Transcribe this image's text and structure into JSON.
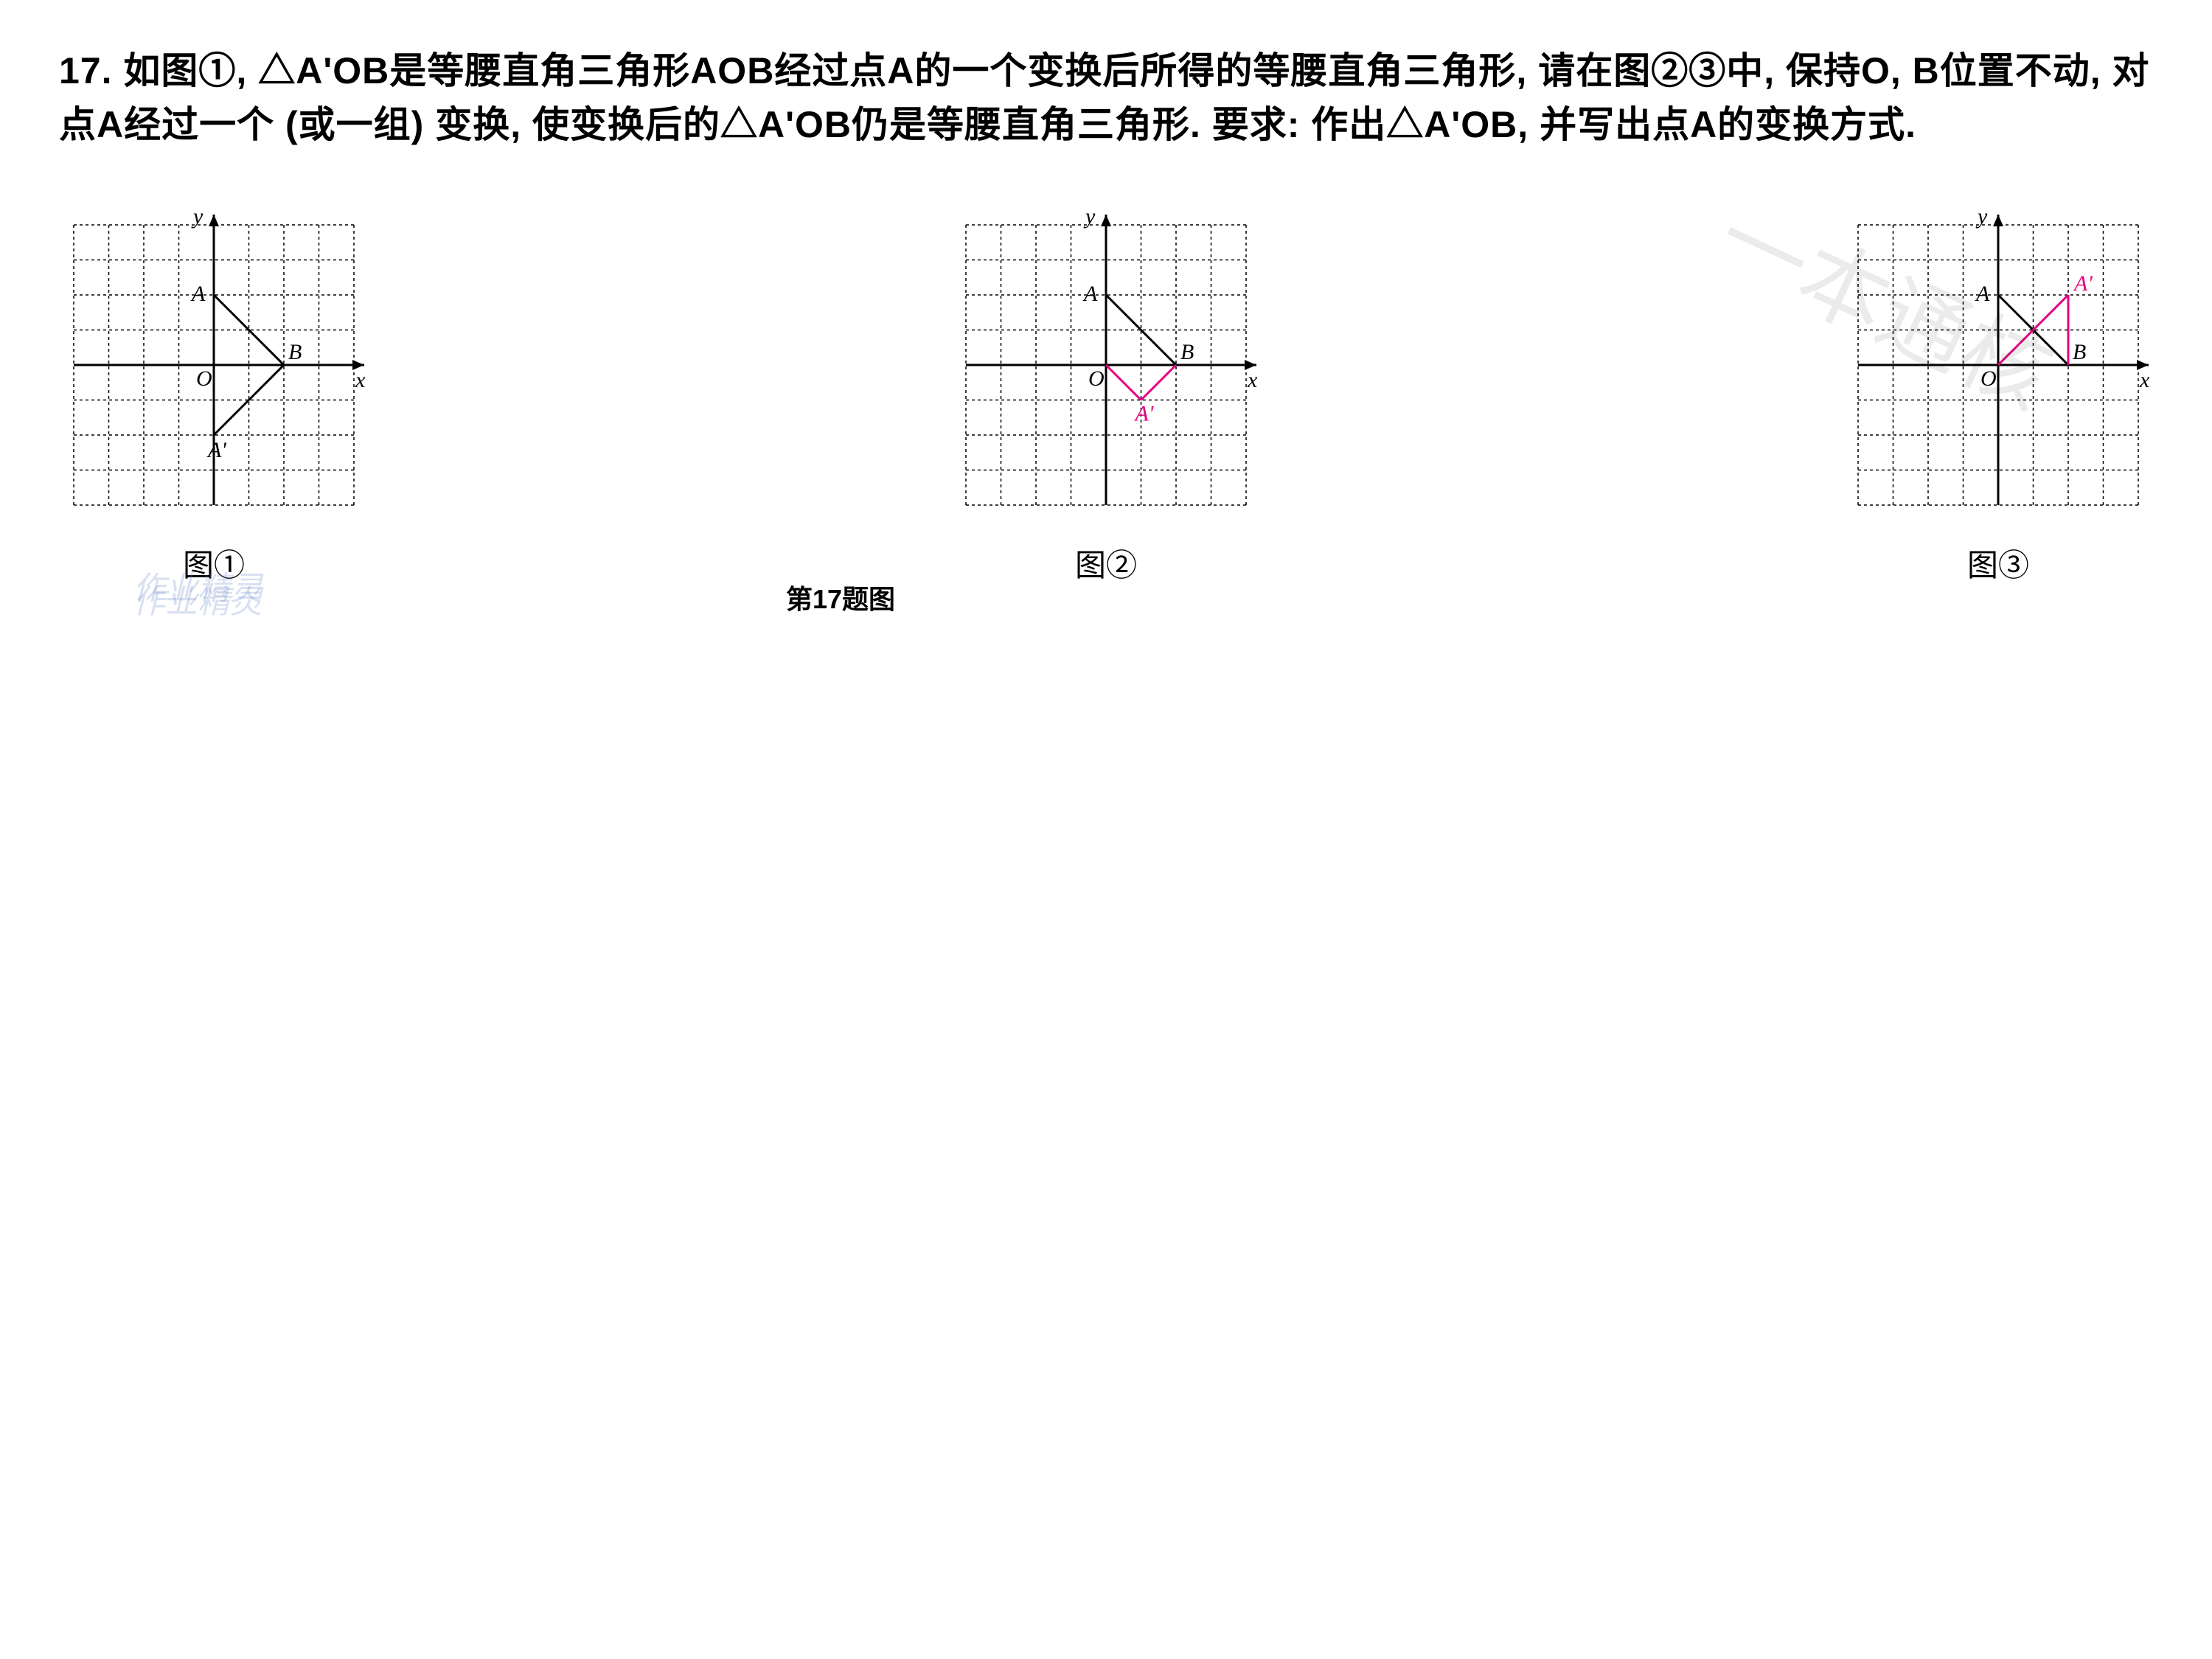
{
  "question": {
    "number": "17.",
    "text": "如图①, △A'OB是等腰直角三角形AOB经过点A的一个变换后所得的等腰直角三角形, 请在图②③中, 保持O, B位置不动, 对点A经过一个 (或一组) 变换, 使变换后的△A'OB仍是等腰直角三角形. 要求: 作出△A'OB, 并写出点A的变换方式."
  },
  "caption": "第17题图",
  "figures": [
    {
      "label": "图①",
      "axis_labels": {
        "x": "x",
        "y": "y",
        "origin": "O"
      },
      "points": {
        "A": "A",
        "B": "B",
        "Aprime": "A'"
      },
      "grid": {
        "xmin": -4,
        "xmax": 4,
        "ymin": -4,
        "ymax": 4,
        "cell": 1
      },
      "O": [
        0,
        0
      ],
      "A_pos": [
        0,
        2
      ],
      "B_pos": [
        2,
        0
      ],
      "Aprime_pos": [
        0,
        -2
      ],
      "black_lines": [
        [
          [
            0,
            2
          ],
          [
            2,
            0
          ]
        ],
        [
          [
            0,
            -2
          ],
          [
            2,
            0
          ]
        ]
      ],
      "pink_lines": [],
      "colors": {
        "grid": "#000000",
        "axis": "#000000",
        "line": "#000000",
        "pink": "#e6007e"
      },
      "label_fontsize": 28
    },
    {
      "label": "图②",
      "axis_labels": {
        "x": "x",
        "y": "y",
        "origin": "O"
      },
      "points": {
        "A": "A",
        "B": "B",
        "Aprime": "A'"
      },
      "grid": {
        "xmin": -4,
        "xmax": 4,
        "ymin": -4,
        "ymax": 4,
        "cell": 1
      },
      "O": [
        0,
        0
      ],
      "A_pos": [
        0,
        2
      ],
      "B_pos": [
        2,
        0
      ],
      "Aprime_pos": [
        1,
        -1
      ],
      "black_lines": [
        [
          [
            0,
            2
          ],
          [
            2,
            0
          ]
        ]
      ],
      "pink_lines": [
        [
          [
            0,
            0
          ],
          [
            1,
            -1
          ]
        ],
        [
          [
            1,
            -1
          ],
          [
            2,
            0
          ]
        ]
      ],
      "colors": {
        "grid": "#000000",
        "axis": "#000000",
        "line": "#000000",
        "pink": "#e6007e"
      },
      "label_fontsize": 28
    },
    {
      "label": "图③",
      "axis_labels": {
        "x": "x",
        "y": "y",
        "origin": "O"
      },
      "points": {
        "A": "A",
        "B": "B",
        "Aprime": "A'"
      },
      "grid": {
        "xmin": -4,
        "xmax": 4,
        "ymin": -4,
        "ymax": 4,
        "cell": 1
      },
      "O": [
        0,
        0
      ],
      "A_pos": [
        0,
        2
      ],
      "B_pos": [
        2,
        0
      ],
      "Aprime_pos": [
        2,
        2
      ],
      "black_lines": [
        [
          [
            0,
            2
          ],
          [
            2,
            0
          ]
        ]
      ],
      "pink_lines": [
        [
          [
            0,
            0
          ],
          [
            2,
            2
          ]
        ],
        [
          [
            2,
            2
          ],
          [
            2,
            0
          ]
        ]
      ],
      "colors": {
        "grid": "#000000",
        "axis": "#000000",
        "line": "#000000",
        "pink": "#e6007e"
      },
      "label_fontsize": 28
    }
  ],
  "watermarks": {
    "large": "一本通核",
    "small1": "作业精灵",
    "small2": "作业精灵"
  }
}
